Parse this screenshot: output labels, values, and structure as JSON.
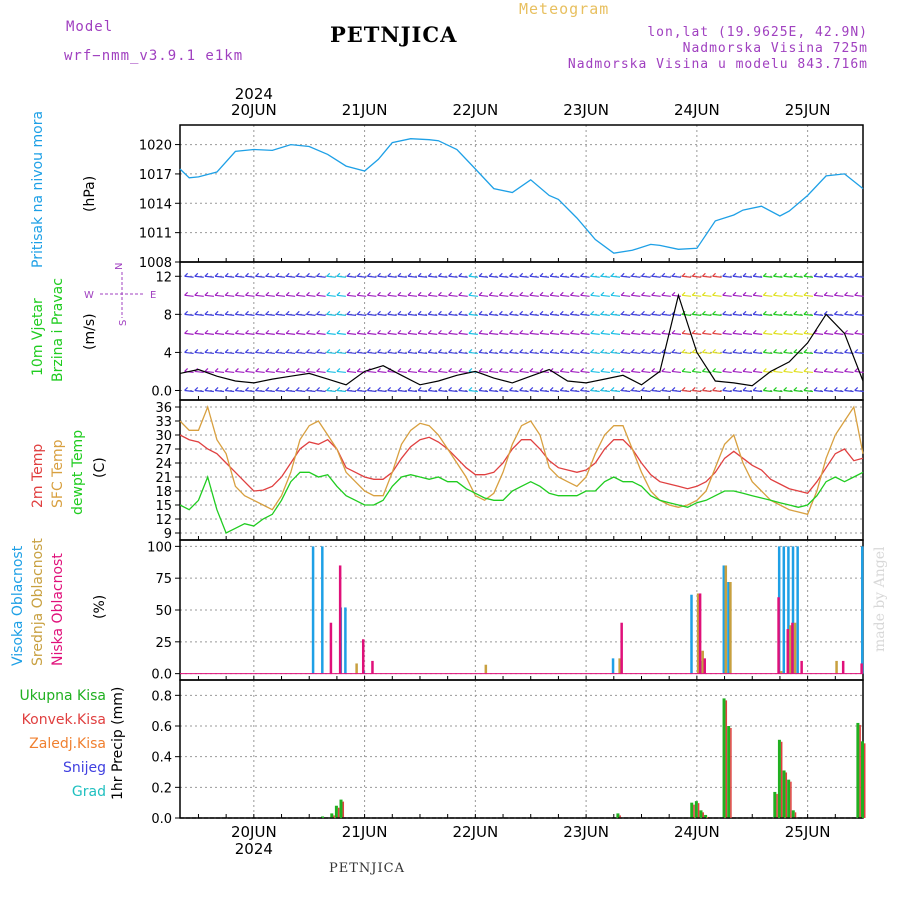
{
  "header": {
    "model_label": "Model",
    "model_name": "wrf−nmm_v3.9.1  e1km",
    "title": "PETNJICA",
    "subtitle": "Meteogram",
    "coords": "lon,lat (19.9625E, 42.9N)",
    "altitude": "Nadmorska Visina 725m",
    "model_altitude": "Nadmorska Visina u modelu 843.716m",
    "footer": "PETNJICA",
    "credit": "made by Angel"
  },
  "colors": {
    "pressure": "#1ea0e6",
    "temp2m": "#e04040",
    "sfctemp": "#d8a040",
    "dewpt": "#20cc20",
    "high_cloud": "#1ea0e6",
    "mid_cloud": "#c8a040",
    "low_cloud": "#e0107a",
    "precip_total": "#20b020",
    "precip_conv": "#e04040",
    "precip_frozen": "#f08030",
    "snow": "#4040e0",
    "hail": "#20c0c0",
    "wind_label": "#20cc20",
    "compass": "#a040c0"
  },
  "time_axis": {
    "year": "2024",
    "days": [
      "20JUN",
      "21JUN",
      "22JUN",
      "23JUN",
      "24JUN",
      "25JUN"
    ],
    "start_hour": -16,
    "end_hour": 132
  },
  "chart_data": [
    {
      "type": "line",
      "name": "pressure",
      "ylabel": "Pritisak na nivou mora",
      "unit": "(hPa)",
      "ylim": [
        1008,
        1022
      ],
      "yticks": [
        1008,
        1011,
        1014,
        1017,
        1020
      ],
      "grid": true,
      "series": [
        {
          "name": "Pritisak na nivou mora",
          "x": [
            -16,
            -14,
            -12,
            -8,
            -4,
            0,
            4,
            8,
            12,
            16,
            20,
            24,
            27,
            30,
            34,
            38,
            40,
            44,
            48,
            52,
            56,
            60,
            64,
            66,
            70,
            74,
            78,
            82,
            86,
            88,
            92,
            96,
            100,
            104,
            106,
            110,
            114,
            116,
            120,
            124,
            128,
            132
          ],
          "y": [
            1017.5,
            1016.6,
            1016.7,
            1017.2,
            1019.3,
            1019.5,
            1019.4,
            1020.0,
            1019.8,
            1019.0,
            1017.8,
            1017.3,
            1018.5,
            1020.2,
            1020.6,
            1020.5,
            1020.4,
            1019.5,
            1017.5,
            1015.5,
            1015.1,
            1016.4,
            1014.8,
            1014.4,
            1012.5,
            1010.3,
            1008.9,
            1009.2,
            1009.8,
            1009.7,
            1009.3,
            1009.4,
            1012.2,
            1012.8,
            1013.3,
            1013.7,
            1012.7,
            1013.2,
            1014.8,
            1016.8,
            1017.0,
            1015.5
          ]
        }
      ]
    },
    {
      "type": "line",
      "name": "wind",
      "ylabel": "10m Vjetar Brzina i Pravac",
      "unit": "(m/s)",
      "compass": [
        "N",
        "W",
        "E",
        "S"
      ],
      "ylim": [
        -1,
        13.5
      ],
      "yticks": [
        0,
        4,
        8,
        12
      ],
      "grid": true,
      "series": [
        {
          "name": "Brzina",
          "x": [
            -16,
            -12,
            -8,
            -4,
            0,
            4,
            8,
            12,
            16,
            20,
            24,
            28,
            32,
            36,
            40,
            44,
            48,
            52,
            56,
            60,
            64,
            68,
            72,
            76,
            80,
            84,
            88,
            92,
            96,
            100,
            104,
            108,
            112,
            116,
            120,
            124,
            128,
            132
          ],
          "y": [
            1.8,
            2.2,
            1.5,
            1.0,
            0.8,
            1.2,
            1.5,
            1.8,
            1.2,
            0.6,
            2.0,
            2.6,
            1.6,
            0.6,
            1.0,
            1.6,
            2.0,
            1.3,
            0.8,
            1.5,
            2.2,
            1.0,
            0.8,
            1.2,
            1.6,
            0.6,
            2.0,
            10.0,
            4.0,
            1.0,
            0.8,
            0.5,
            2.0,
            3.0,
            5.0,
            8.0,
            6.0,
            1.0
          ]
        }
      ]
    },
    {
      "type": "line",
      "name": "temperature",
      "ylabel": "2m Temp / SFC Temp / dewpt Temp",
      "unit": "(C)",
      "ylim": [
        7.5,
        37.5
      ],
      "yticks": [
        9,
        12,
        15,
        18,
        21,
        24,
        27,
        30,
        33,
        36
      ],
      "grid": true,
      "series": [
        {
          "name": "2m Temp",
          "x": [
            -16,
            -14,
            -12,
            -10,
            -8,
            -6,
            -4,
            -2,
            0,
            2,
            4,
            6,
            8,
            10,
            12,
            14,
            16,
            18,
            20,
            22,
            24,
            26,
            28,
            30,
            32,
            34,
            36,
            38,
            40,
            42,
            44,
            46,
            48,
            50,
            52,
            54,
            56,
            58,
            60,
            62,
            64,
            66,
            68,
            70,
            72,
            74,
            76,
            78,
            80,
            82,
            84,
            86,
            88,
            90,
            92,
            94,
            96,
            98,
            100,
            102,
            104,
            106,
            108,
            110,
            112,
            114,
            116,
            118,
            120,
            122,
            124,
            126,
            128,
            130,
            132
          ],
          "y": [
            30,
            29,
            28.5,
            27,
            26,
            24,
            22,
            20,
            18,
            18.2,
            19,
            21,
            24,
            27,
            28.5,
            28,
            29,
            27,
            23,
            22,
            21,
            20.5,
            20.5,
            22,
            25,
            27.5,
            29,
            29.5,
            28.5,
            27,
            25,
            23,
            21.5,
            21.5,
            22,
            24,
            27,
            29,
            29,
            27,
            24.5,
            23,
            22.5,
            22,
            22.5,
            24,
            27,
            29,
            29,
            27,
            24,
            21.5,
            20,
            19.5,
            19,
            18.5,
            19,
            20,
            22,
            25,
            26.5,
            25,
            23.5,
            22.5,
            20.5,
            19.5,
            18.5,
            18,
            17.5,
            20,
            23,
            26,
            27,
            24.5,
            25
          ]
        },
        {
          "name": "SFC Temp",
          "x": [
            -16,
            -14,
            -12,
            -10,
            -8,
            -6,
            -4,
            -2,
            0,
            2,
            4,
            6,
            8,
            10,
            12,
            14,
            16,
            18,
            20,
            22,
            24,
            26,
            28,
            30,
            32,
            34,
            36,
            38,
            40,
            42,
            44,
            46,
            48,
            50,
            52,
            54,
            56,
            58,
            60,
            62,
            64,
            66,
            68,
            70,
            72,
            74,
            76,
            78,
            80,
            82,
            84,
            86,
            88,
            90,
            92,
            94,
            96,
            98,
            100,
            102,
            104,
            106,
            108,
            110,
            112,
            114,
            116,
            118,
            120,
            122,
            124,
            126,
            128,
            130,
            132
          ],
          "y": [
            33,
            31,
            31,
            36,
            29,
            26,
            19,
            17,
            16,
            15,
            14,
            17,
            22,
            29,
            32,
            33,
            30,
            27,
            22,
            20,
            18,
            17,
            17,
            22,
            28,
            31,
            32.5,
            32,
            30,
            27,
            24,
            21,
            17,
            16,
            17.5,
            22,
            28,
            32,
            33,
            30,
            23,
            21,
            20,
            19,
            21,
            26,
            30,
            32,
            32,
            27,
            22,
            18,
            16,
            15,
            14.5,
            15,
            16,
            18,
            23,
            28,
            30,
            24,
            20,
            18,
            16,
            15,
            14,
            13.5,
            13,
            18,
            25,
            30,
            33,
            36,
            26
          ]
        },
        {
          "name": "dewpt Temp",
          "x": [
            -16,
            -14,
            -12,
            -10,
            -8,
            -6,
            -4,
            -2,
            0,
            2,
            4,
            6,
            8,
            10,
            12,
            14,
            16,
            18,
            20,
            22,
            24,
            26,
            28,
            30,
            32,
            34,
            36,
            38,
            40,
            42,
            44,
            46,
            48,
            50,
            52,
            54,
            56,
            58,
            60,
            62,
            64,
            66,
            68,
            70,
            72,
            74,
            76,
            78,
            80,
            82,
            84,
            86,
            88,
            90,
            92,
            94,
            96,
            98,
            100,
            102,
            104,
            106,
            108,
            110,
            112,
            114,
            116,
            118,
            120,
            122,
            124,
            126,
            128,
            130,
            132
          ],
          "y": [
            15,
            14,
            16,
            21,
            14,
            9,
            10,
            11,
            10.5,
            12,
            13,
            16,
            20,
            22,
            22,
            21,
            21.5,
            19,
            17,
            16,
            15,
            15,
            16,
            19,
            21,
            21.5,
            21,
            20.5,
            21,
            20,
            20,
            18.5,
            17.5,
            16.5,
            16,
            16,
            18,
            19,
            20,
            19,
            17.5,
            17,
            17,
            17,
            18,
            18,
            20,
            21,
            20,
            20,
            19,
            17,
            16,
            15.5,
            15,
            14.5,
            15.5,
            16,
            17,
            18,
            18,
            17.5,
            17,
            16.5,
            16,
            15.5,
            15,
            14.5,
            15,
            17,
            20,
            21,
            20,
            21,
            22
          ]
        }
      ]
    },
    {
      "type": "bar",
      "name": "cloud",
      "ylabel": "Visoka Oblacnost / Srednja Oblacnost / Niska Oblacnost",
      "unit": "(%)",
      "ylim": [
        -5,
        105
      ],
      "yticks": [
        0,
        25,
        50,
        75,
        100
      ],
      "grid": true,
      "series": [
        {
          "name": "Visoka Oblacnost",
          "x": [
            13,
            15,
            19,
            20,
            24,
            78,
            95,
            97,
            102,
            103,
            114,
            115,
            116,
            117,
            118,
            132
          ],
          "y": [
            100,
            100,
            52,
            52,
            2,
            12,
            62,
            10,
            85,
            72,
            100,
            100,
            100,
            100,
            100,
            100
          ]
        },
        {
          "name": "Srednja Oblacnost",
          "x": [
            22,
            50,
            79,
            96,
            97,
            102,
            103,
            114,
            116,
            117,
            126
          ],
          "y": [
            8,
            7,
            12,
            63,
            18,
            85,
            72,
            2,
            38,
            40,
            10
          ]
        },
        {
          "name": "Niska Oblacnost",
          "x": [
            16,
            18,
            23,
            25,
            79,
            96,
            97,
            113,
            115,
            116,
            118,
            127,
            131
          ],
          "y": [
            40,
            85,
            27,
            10,
            40,
            63,
            12,
            60,
            35,
            40,
            10,
            10,
            8
          ]
        }
      ]
    },
    {
      "type": "bar",
      "name": "precip",
      "ylabel": "1hr Precip",
      "unit": "(mm)",
      "legend": [
        "Ukupna Kisa",
        "Konvek.Kisa",
        "Zaledj.Kisa",
        "Snijeg",
        "Grad"
      ],
      "ylim": [
        0,
        0.9
      ],
      "yticks": [
        0,
        0.2,
        0.4,
        0.6,
        0.8
      ],
      "grid": true,
      "series": [
        {
          "name": "Ukupna Kisa",
          "x": [
            15,
            17,
            18,
            19,
            79,
            95,
            96,
            97,
            98,
            102,
            103,
            113,
            114,
            115,
            116,
            117,
            131,
            132
          ],
          "y": [
            0.01,
            0.03,
            0.08,
            0.12,
            0.03,
            0.1,
            0.11,
            0.05,
            0.02,
            0.78,
            0.6,
            0.17,
            0.51,
            0.31,
            0.25,
            0.05,
            0.62,
            0.5
          ]
        }
      ]
    }
  ]
}
